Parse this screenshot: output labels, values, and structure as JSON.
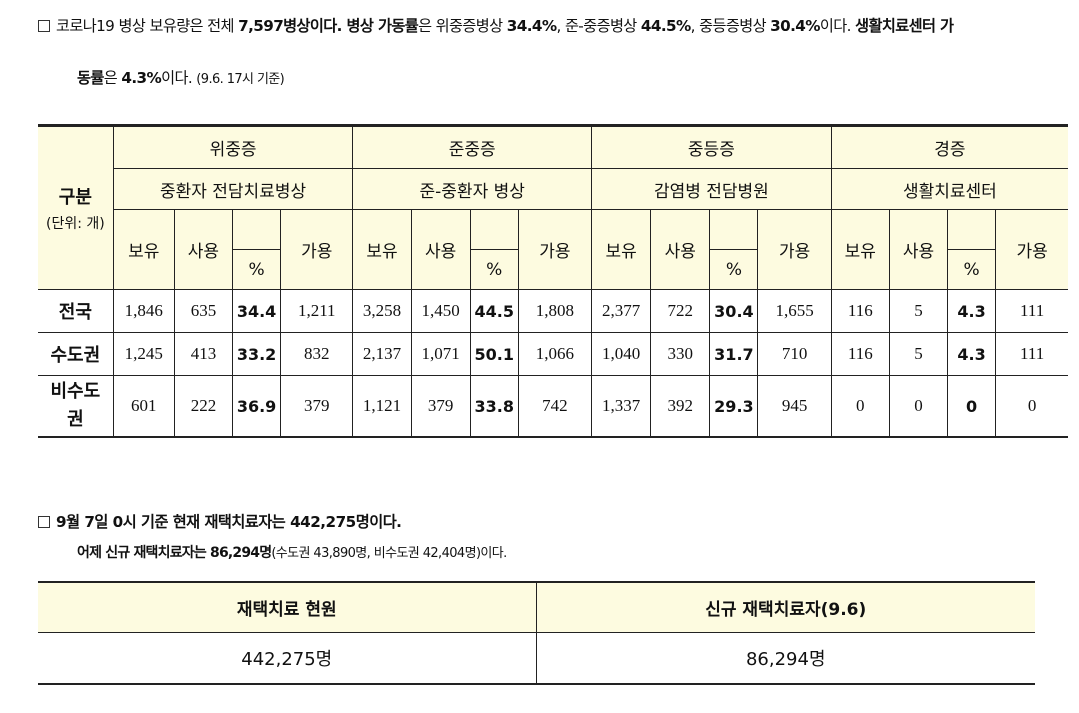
{
  "para1": {
    "line1": {
      "a": "코로나19 병상 보유량은 전체 ",
      "b": "7,597병상이다. 병상 가동률",
      "c": "은 위중증병상 ",
      "d": "34.4%",
      "e": ", 준-중증병상 ",
      "f": "44.5%",
      "g": ", 중등증병상 ",
      "h": "30.4%",
      "i": "이다. ",
      "j": "생활치료센터 가"
    },
    "line2": {
      "a": "동률",
      "b": "은 ",
      "c": "4.3%",
      "d": "이다. ",
      "e": "(9.6. 17시 기준)"
    }
  },
  "table1": {
    "row_header": "구분",
    "unit": "(단위: 개)",
    "groups": [
      {
        "severity": "위중증",
        "type": "중환자 전담치료병상"
      },
      {
        "severity": "준중증",
        "type": "준-중환자 병상"
      },
      {
        "severity": "중등증",
        "type": "감염병 전담병원"
      },
      {
        "severity": "경증",
        "type": "생활치료센터"
      }
    ],
    "sub": {
      "own": "보유",
      "use": "사용",
      "pct": "%",
      "avail": "가용"
    },
    "rows": [
      {
        "label": "전국",
        "v": [
          "1,846",
          "635",
          "34.4",
          "1,211",
          "3,258",
          "1,450",
          "44.5",
          "1,808",
          "2,377",
          "722",
          "30.4",
          "1,655",
          "116",
          "5",
          "4.3",
          "111"
        ]
      },
      {
        "label": "수도권",
        "v": [
          "1,245",
          "413",
          "33.2",
          "832",
          "2,137",
          "1,071",
          "50.1",
          "1,066",
          "1,040",
          "330",
          "31.7",
          "710",
          "116",
          "5",
          "4.3",
          "111"
        ]
      },
      {
        "label": "비수도권",
        "v": [
          "601",
          "222",
          "36.9",
          "379",
          "1,121",
          "379",
          "33.8",
          "742",
          "1,337",
          "392",
          "29.3",
          "945",
          "0",
          "0",
          "0",
          "0"
        ]
      }
    ]
  },
  "para2": {
    "line1": "9월 7일 0시 기준 현재 재택치료자는 442,275명이다.",
    "line2a": "어제 신규 재택치료자는 86,294명",
    "line2b": "(수도권 43,890명, 비수도권 42,404명)",
    "line2c": "이다."
  },
  "table2": {
    "headers": [
      "재택치료 현원",
      "신규 재택치료자(9.6)"
    ],
    "values": [
      "442,275명",
      "86,294명"
    ]
  }
}
